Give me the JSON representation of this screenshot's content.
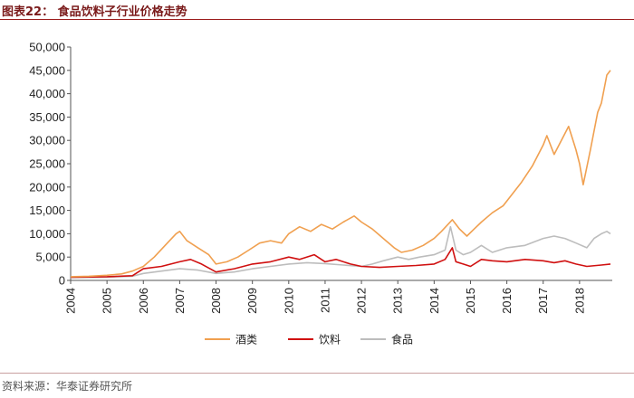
{
  "header": {
    "title": "图表22：  食品饮料子行业价格走势"
  },
  "source": {
    "text": "资料来源：华泰证券研究所"
  },
  "chart_data": {
    "type": "line",
    "title": "食品饮料子行业价格走势",
    "xlabel": "",
    "ylabel": "",
    "xlim": [
      2004.0,
      2018.9
    ],
    "ylim": [
      0,
      50000
    ],
    "y_ticks": [
      "0",
      "5,000",
      "10,000",
      "15,000",
      "20,000",
      "25,000",
      "30,000",
      "35,000",
      "40,000",
      "45,000",
      "50,000"
    ],
    "x_ticks": [
      "2004",
      "2005",
      "2006",
      "2007",
      "2008",
      "2009",
      "2010",
      "2011",
      "2012",
      "2013",
      "2014",
      "2015",
      "2016",
      "2017",
      "2018"
    ],
    "legend": [
      "酒类",
      "饮料",
      "食品"
    ],
    "legend_position": "bottom",
    "series": [
      {
        "name": "酒类",
        "color": "#F0A050",
        "x": [
          2004.0,
          2004.5,
          2005.0,
          2005.4,
          2005.7,
          2006.0,
          2006.3,
          2006.6,
          2006.9,
          2007.0,
          2007.2,
          2007.5,
          2007.8,
          2008.0,
          2008.3,
          2008.6,
          2008.9,
          2009.2,
          2009.5,
          2009.8,
          2010.0,
          2010.3,
          2010.6,
          2010.9,
          2011.2,
          2011.5,
          2011.8,
          2012.0,
          2012.3,
          2012.6,
          2012.9,
          2013.1,
          2013.4,
          2013.7,
          2014.0,
          2014.2,
          2014.5,
          2014.7,
          2014.9,
          2015.1,
          2015.3,
          2015.6,
          2015.9,
          2016.1,
          2016.4,
          2016.7,
          2017.0,
          2017.1,
          2017.3,
          2017.5,
          2017.7,
          2017.9,
          2018.0,
          2018.1,
          2018.3,
          2018.5,
          2018.6,
          2018.75,
          2018.85
        ],
        "y": [
          800,
          900,
          1100,
          1400,
          2000,
          3000,
          5000,
          7500,
          10000,
          10500,
          8500,
          7000,
          5500,
          3500,
          4000,
          5000,
          6500,
          8000,
          8500,
          8000,
          10000,
          11500,
          10500,
          12000,
          11000,
          12500,
          13800,
          12500,
          11000,
          9000,
          7000,
          6000,
          6500,
          7500,
          9000,
          10500,
          13000,
          11000,
          9500,
          11000,
          12500,
          14500,
          16000,
          18000,
          21000,
          24500,
          29000,
          31000,
          27000,
          30000,
          33000,
          28000,
          25000,
          20500,
          28000,
          36000,
          38000,
          44000,
          45000
        ]
      },
      {
        "name": "饮料",
        "color": "#D01010",
        "x": [
          2004.0,
          2005.0,
          2005.7,
          2006.0,
          2006.5,
          2007.0,
          2007.3,
          2007.6,
          2008.0,
          2008.5,
          2009.0,
          2009.5,
          2010.0,
          2010.3,
          2010.7,
          2011.0,
          2011.3,
          2011.7,
          2012.0,
          2012.5,
          2013.0,
          2013.5,
          2014.0,
          2014.3,
          2014.5,
          2014.6,
          2014.8,
          2015.0,
          2015.3,
          2015.6,
          2016.0,
          2016.5,
          2017.0,
          2017.3,
          2017.6,
          2017.9,
          2018.2,
          2018.6,
          2018.85
        ],
        "y": [
          700,
          800,
          1000,
          2500,
          3000,
          4000,
          4500,
          3500,
          1800,
          2500,
          3500,
          4000,
          5000,
          4500,
          5500,
          4000,
          4500,
          3500,
          3000,
          2800,
          3000,
          3200,
          3500,
          4500,
          7000,
          4000,
          3500,
          3000,
          4500,
          4200,
          4000,
          4500,
          4200,
          3800,
          4200,
          3500,
          3000,
          3300,
          3500
        ]
      },
      {
        "name": "食品",
        "color": "#BDBDBD",
        "x": [
          2004.0,
          2005.0,
          2005.7,
          2006.0,
          2006.5,
          2007.0,
          2007.5,
          2008.0,
          2008.5,
          2009.0,
          2009.5,
          2010.0,
          2010.5,
          2011.0,
          2011.5,
          2012.0,
          2012.3,
          2012.6,
          2013.0,
          2013.3,
          2013.6,
          2014.0,
          2014.3,
          2014.45,
          2014.6,
          2014.8,
          2015.0,
          2015.3,
          2015.6,
          2016.0,
          2016.5,
          2017.0,
          2017.3,
          2017.6,
          2017.9,
          2018.2,
          2018.4,
          2018.6,
          2018.75,
          2018.85
        ],
        "y": [
          600,
          700,
          900,
          1500,
          2000,
          2500,
          2200,
          1500,
          1800,
          2500,
          3000,
          3500,
          3800,
          3600,
          3300,
          3000,
          3500,
          4200,
          5000,
          4500,
          5000,
          5500,
          6500,
          11500,
          6500,
          5500,
          6000,
          7500,
          6000,
          7000,
          7500,
          9000,
          9500,
          9000,
          8000,
          7000,
          9000,
          10000,
          10500,
          10000
        ]
      }
    ]
  }
}
